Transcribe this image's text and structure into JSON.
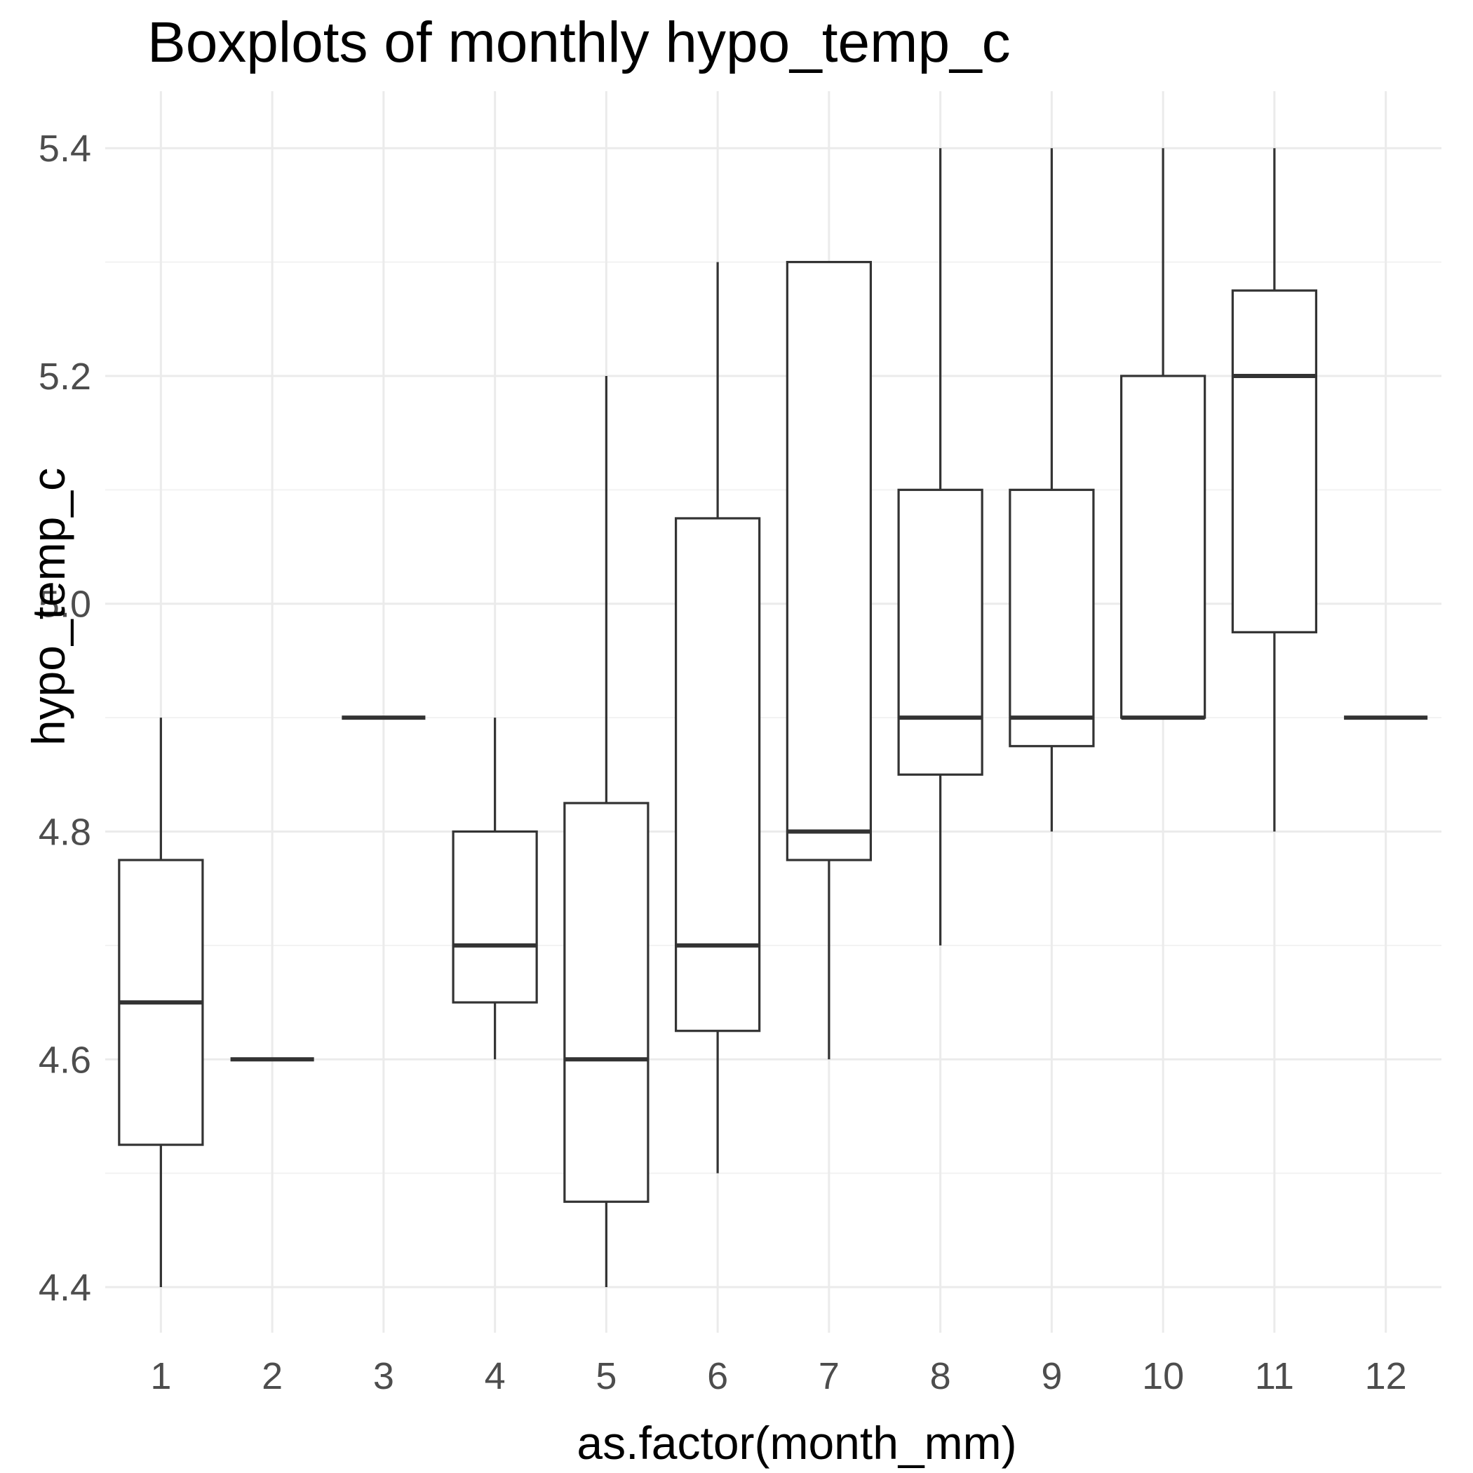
{
  "chart_data": {
    "type": "boxplot",
    "title": "Boxplots of monthly hypo_temp_c",
    "xlabel": "as.factor(month_mm)",
    "ylabel": "hypo_temp_c",
    "categories": [
      "1",
      "2",
      "3",
      "4",
      "5",
      "6",
      "7",
      "8",
      "9",
      "10",
      "11",
      "12"
    ],
    "ylim": [
      4.36,
      5.45
    ],
    "yticks": [
      4.4,
      4.6,
      4.8,
      5.0,
      5.2,
      5.4
    ],
    "yticklabels": [
      "4.4",
      "4.6",
      "4.8",
      "5.0",
      "5.2",
      "5.4"
    ],
    "yminor": [
      4.5,
      4.7,
      4.9,
      5.1,
      5.3
    ],
    "grid": true,
    "boxes": [
      {
        "category": "1",
        "min": 4.4,
        "q1": 4.525,
        "median": 4.65,
        "q3": 4.775,
        "max": 4.9
      },
      {
        "category": "2",
        "min": 4.6,
        "q1": 4.6,
        "median": 4.6,
        "q3": 4.6,
        "max": 4.6
      },
      {
        "category": "3",
        "min": 4.9,
        "q1": 4.9,
        "median": 4.9,
        "q3": 4.9,
        "max": 4.9
      },
      {
        "category": "4",
        "min": 4.6,
        "q1": 4.65,
        "median": 4.7,
        "q3": 4.8,
        "max": 4.9
      },
      {
        "category": "5",
        "min": 4.4,
        "q1": 4.475,
        "median": 4.6,
        "q3": 4.825,
        "max": 5.2
      },
      {
        "category": "6",
        "min": 4.5,
        "q1": 4.625,
        "median": 4.7,
        "q3": 5.075,
        "max": 5.3
      },
      {
        "category": "7",
        "min": 4.6,
        "q1": 4.775,
        "median": 4.8,
        "q3": 5.3,
        "max": 5.3
      },
      {
        "category": "8",
        "min": 4.7,
        "q1": 4.85,
        "median": 4.9,
        "q3": 5.1,
        "max": 5.4
      },
      {
        "category": "9",
        "min": 4.8,
        "q1": 4.875,
        "median": 4.9,
        "q3": 5.1,
        "max": 5.4
      },
      {
        "category": "10",
        "min": 4.9,
        "q1": 4.9,
        "median": 4.9,
        "q3": 5.2,
        "max": 5.4
      },
      {
        "category": "11",
        "min": 4.8,
        "q1": 4.975,
        "median": 5.2,
        "q3": 5.275,
        "max": 5.4
      },
      {
        "category": "12",
        "min": 4.9,
        "q1": 4.9,
        "median": 4.9,
        "q3": 4.9,
        "max": 4.9
      }
    ]
  }
}
